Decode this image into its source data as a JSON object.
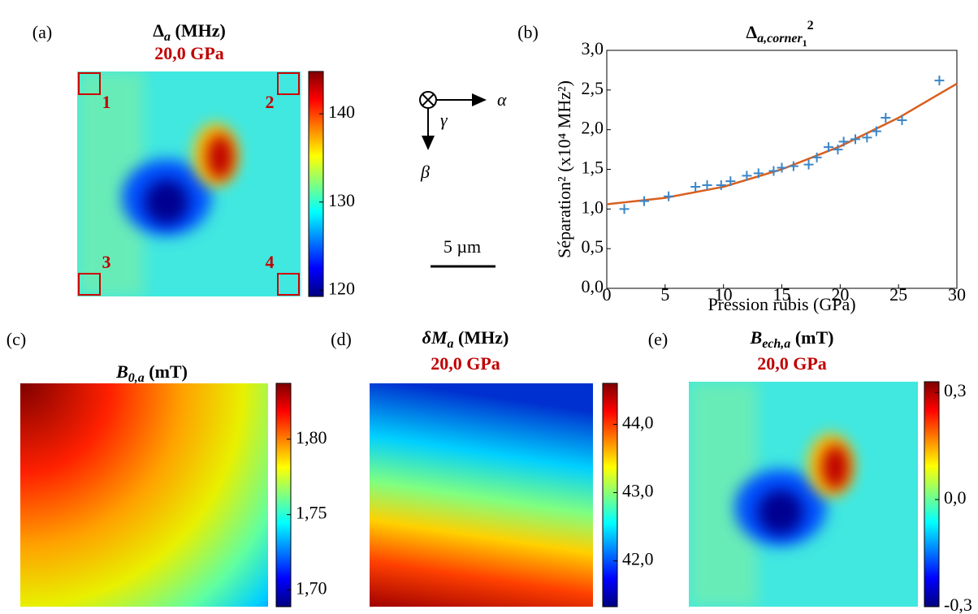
{
  "chart_data": [
    {
      "type": "heatmap",
      "panel": "(a)",
      "title": [
        "Δ",
        "a",
        " (MHz)"
      ],
      "subtitle": "20,0 GPa",
      "zlim": [
        119.3,
        144.8
      ],
      "zticks": [
        120,
        130,
        140
      ],
      "corners": [
        "1",
        "2",
        "3",
        "4"
      ]
    },
    {
      "type": "scatter",
      "panel": "(b)",
      "title": [
        "Δ",
        "a,corner",
        "1",
        "2"
      ],
      "x_label": "Pression rubis (GPa)",
      "y_label": "Séparation² (x10⁴ MHz²)",
      "xlim": [
        0,
        30
      ],
      "ylim": [
        0,
        3
      ],
      "xticks": [
        0,
        5,
        10,
        15,
        20,
        25,
        30
      ],
      "yticks": [
        {
          "value": 0,
          "label": "0,0"
        },
        {
          "value": 0.5,
          "label": "0,5"
        },
        {
          "value": 1,
          "label": "1,0"
        },
        {
          "value": 1.5,
          "label": "1,5"
        },
        {
          "value": 2,
          "label": "2,0"
        },
        {
          "value": 2.5,
          "label": "2,5"
        },
        {
          "value": 3,
          "label": "3,0"
        }
      ],
      "series": [
        {
          "color": "#3a86c8",
          "x": [
            1.5,
            3.2,
            5.3,
            7.6,
            8.6,
            9.8,
            10.6,
            12,
            13,
            14.3,
            15,
            16,
            17.3,
            18,
            19,
            19.8,
            20.3,
            21.3,
            22.3,
            23.1,
            23.9,
            25.3,
            28.5
          ],
          "values": [
            1.0,
            1.1,
            1.16,
            1.28,
            1.3,
            1.3,
            1.35,
            1.42,
            1.45,
            1.48,
            1.52,
            1.54,
            1.56,
            1.65,
            1.78,
            1.75,
            1.85,
            1.88,
            1.9,
            1.98,
            2.15,
            2.12,
            2.62
          ]
        },
        {
          "color": "#d95f1e",
          "x": [
            0,
            5,
            10,
            15,
            20,
            25,
            30
          ],
          "values": [
            1.06,
            1.14,
            1.28,
            1.5,
            1.79,
            2.15,
            2.58
          ]
        }
      ]
    },
    {
      "type": "heatmap",
      "panel": "(c)",
      "title": [
        "B",
        "0,a",
        " (mT)"
      ],
      "zlim": [
        1.689,
        1.837
      ],
      "zticks": [
        {
          "value": 1.7,
          "label": "1,70"
        },
        {
          "value": 1.75,
          "label": "1,75"
        },
        {
          "value": 1.8,
          "label": "1,80"
        }
      ]
    },
    {
      "type": "heatmap",
      "panel": "(d)",
      "title": [
        "δM",
        "a",
        " (MHz)"
      ],
      "subtitle": "20,0 GPa",
      "zlim": [
        41.33,
        44.6
      ],
      "zticks": [
        {
          "value": 42,
          "label": "42,0"
        },
        {
          "value": 43,
          "label": "43,0"
        },
        {
          "value": 44,
          "label": "44,0"
        }
      ]
    },
    {
      "type": "heatmap",
      "panel": "(e)",
      "title": [
        "B",
        "ech,a",
        " (mT)"
      ],
      "subtitle": "20,0 GPa",
      "zlim": [
        -0.3,
        0.33
      ],
      "zticks": [
        {
          "value": -0.3,
          "label": "-0,3"
        },
        {
          "value": 0,
          "label": "0,0"
        },
        {
          "value": 0.3,
          "label": "0,3"
        }
      ]
    }
  ],
  "axes_diagram": {
    "alpha": "α",
    "beta": "β",
    "gamma": "γ"
  },
  "scale_bar": "5 µm"
}
